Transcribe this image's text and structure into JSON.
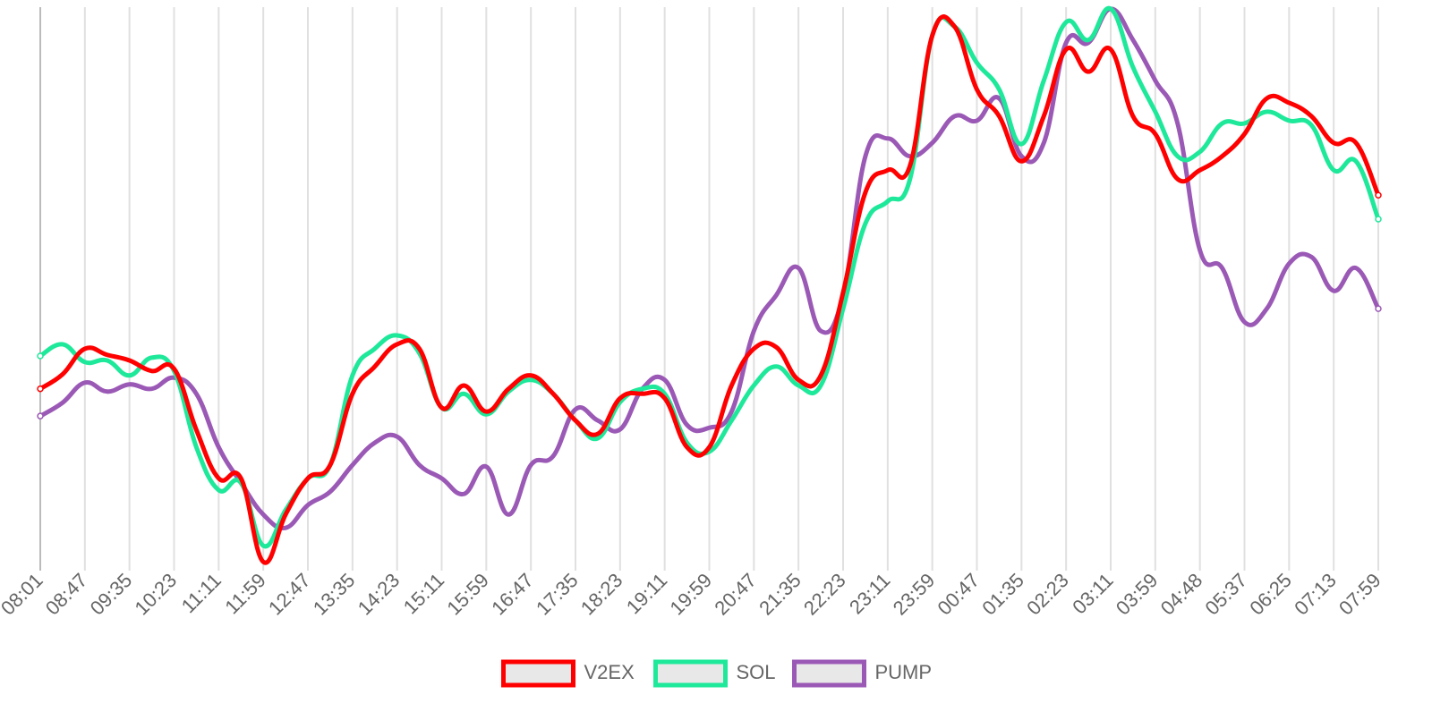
{
  "chart_data": {
    "type": "line",
    "categories": [
      "08:01",
      null,
      "08:47",
      null,
      "09:35",
      null,
      "10:23",
      null,
      "11:11",
      null,
      "11:59",
      null,
      "12:47",
      null,
      "13:35",
      null,
      "14:23",
      null,
      "15:11",
      null,
      "15:59",
      null,
      "16:47",
      null,
      "17:35",
      null,
      "18:23",
      null,
      "19:11",
      null,
      "19:59",
      null,
      "20:47",
      null,
      "21:35",
      null,
      "22:23",
      null,
      "23:11",
      null,
      "23:59",
      null,
      "00:47",
      null,
      "01:35",
      null,
      "02:23",
      null,
      "03:11",
      null,
      "03:59",
      null,
      "04:48",
      null,
      "05:37",
      null,
      "06:25",
      null,
      "07:13",
      null,
      "07:59"
    ],
    "ylim": [
      0,
      100
    ],
    "grid": true,
    "legend": "bottom",
    "series": [
      {
        "name": "V2EX",
        "color": "#ff0000",
        "values": [
          31.4,
          34,
          38.6,
          37.5,
          36.5,
          34.6,
          35,
          24,
          15.3,
          15.3,
          0.3,
          8.8,
          15.3,
          17.7,
          30.5,
          35.4,
          39.4,
          38.6,
          28,
          32,
          27.3,
          31.4,
          33.8,
          30.5,
          25.7,
          23.3,
          29.7,
          30.5,
          29.7,
          20.9,
          20.9,
          32,
          38.6,
          38.9,
          33,
          33.8,
          48.7,
          66.7,
          70.7,
          71.5,
          94.9,
          96.5,
          85.2,
          80.4,
          72.3,
          80.4,
          92.4,
          88.4,
          92.4,
          80.4,
          77.2,
          69.1,
          70.7,
          73.2,
          77.2,
          83.6,
          82.8,
          80.4,
          75.6,
          75.6,
          66.2
        ]
      },
      {
        "name": "SOL",
        "color": "#1ee89a",
        "values": [
          37.3,
          39.4,
          36.2,
          36.5,
          33.8,
          37,
          34.6,
          20.9,
          13.2,
          14.5,
          3.2,
          9.6,
          15.3,
          17.7,
          33.8,
          38.6,
          41,
          37.8,
          28,
          30.5,
          26.8,
          30.9,
          33,
          30.5,
          25.7,
          22.5,
          29,
          31.4,
          30.5,
          21.7,
          20.1,
          25.7,
          32,
          35.4,
          32,
          32,
          45.8,
          61.1,
          65.1,
          69.1,
          94.9,
          96.5,
          90,
          85.2,
          75.4,
          86.8,
          97.3,
          94.1,
          99.7,
          89.2,
          81.2,
          73.2,
          74,
          79.1,
          79.1,
          81.2,
          79.6,
          78.8,
          70.7,
          72.3,
          61.9
        ]
      },
      {
        "name": "PUMP",
        "color": "#9b59b6",
        "values": [
          26.5,
          28.9,
          32.5,
          30.9,
          32.2,
          31.4,
          33.4,
          30.5,
          20.9,
          14.5,
          8.8,
          6.4,
          10.5,
          12.9,
          17.7,
          21.7,
          22.8,
          17.7,
          15.3,
          12.5,
          17.4,
          8.8,
          17.7,
          19.3,
          27.7,
          25.7,
          24.1,
          31.4,
          33,
          24.9,
          24.4,
          27.3,
          41.8,
          48.2,
          53.1,
          41.8,
          48.2,
          73.2,
          76.4,
          73.2,
          75.6,
          80.4,
          79.6,
          83.6,
          73.2,
          75.6,
          93.6,
          93.6,
          99.7,
          94.1,
          86.8,
          79.1,
          56.3,
          53.1,
          43.4,
          45.8,
          53.9,
          55.1,
          49,
          53.1,
          45.8
        ]
      }
    ]
  }
}
